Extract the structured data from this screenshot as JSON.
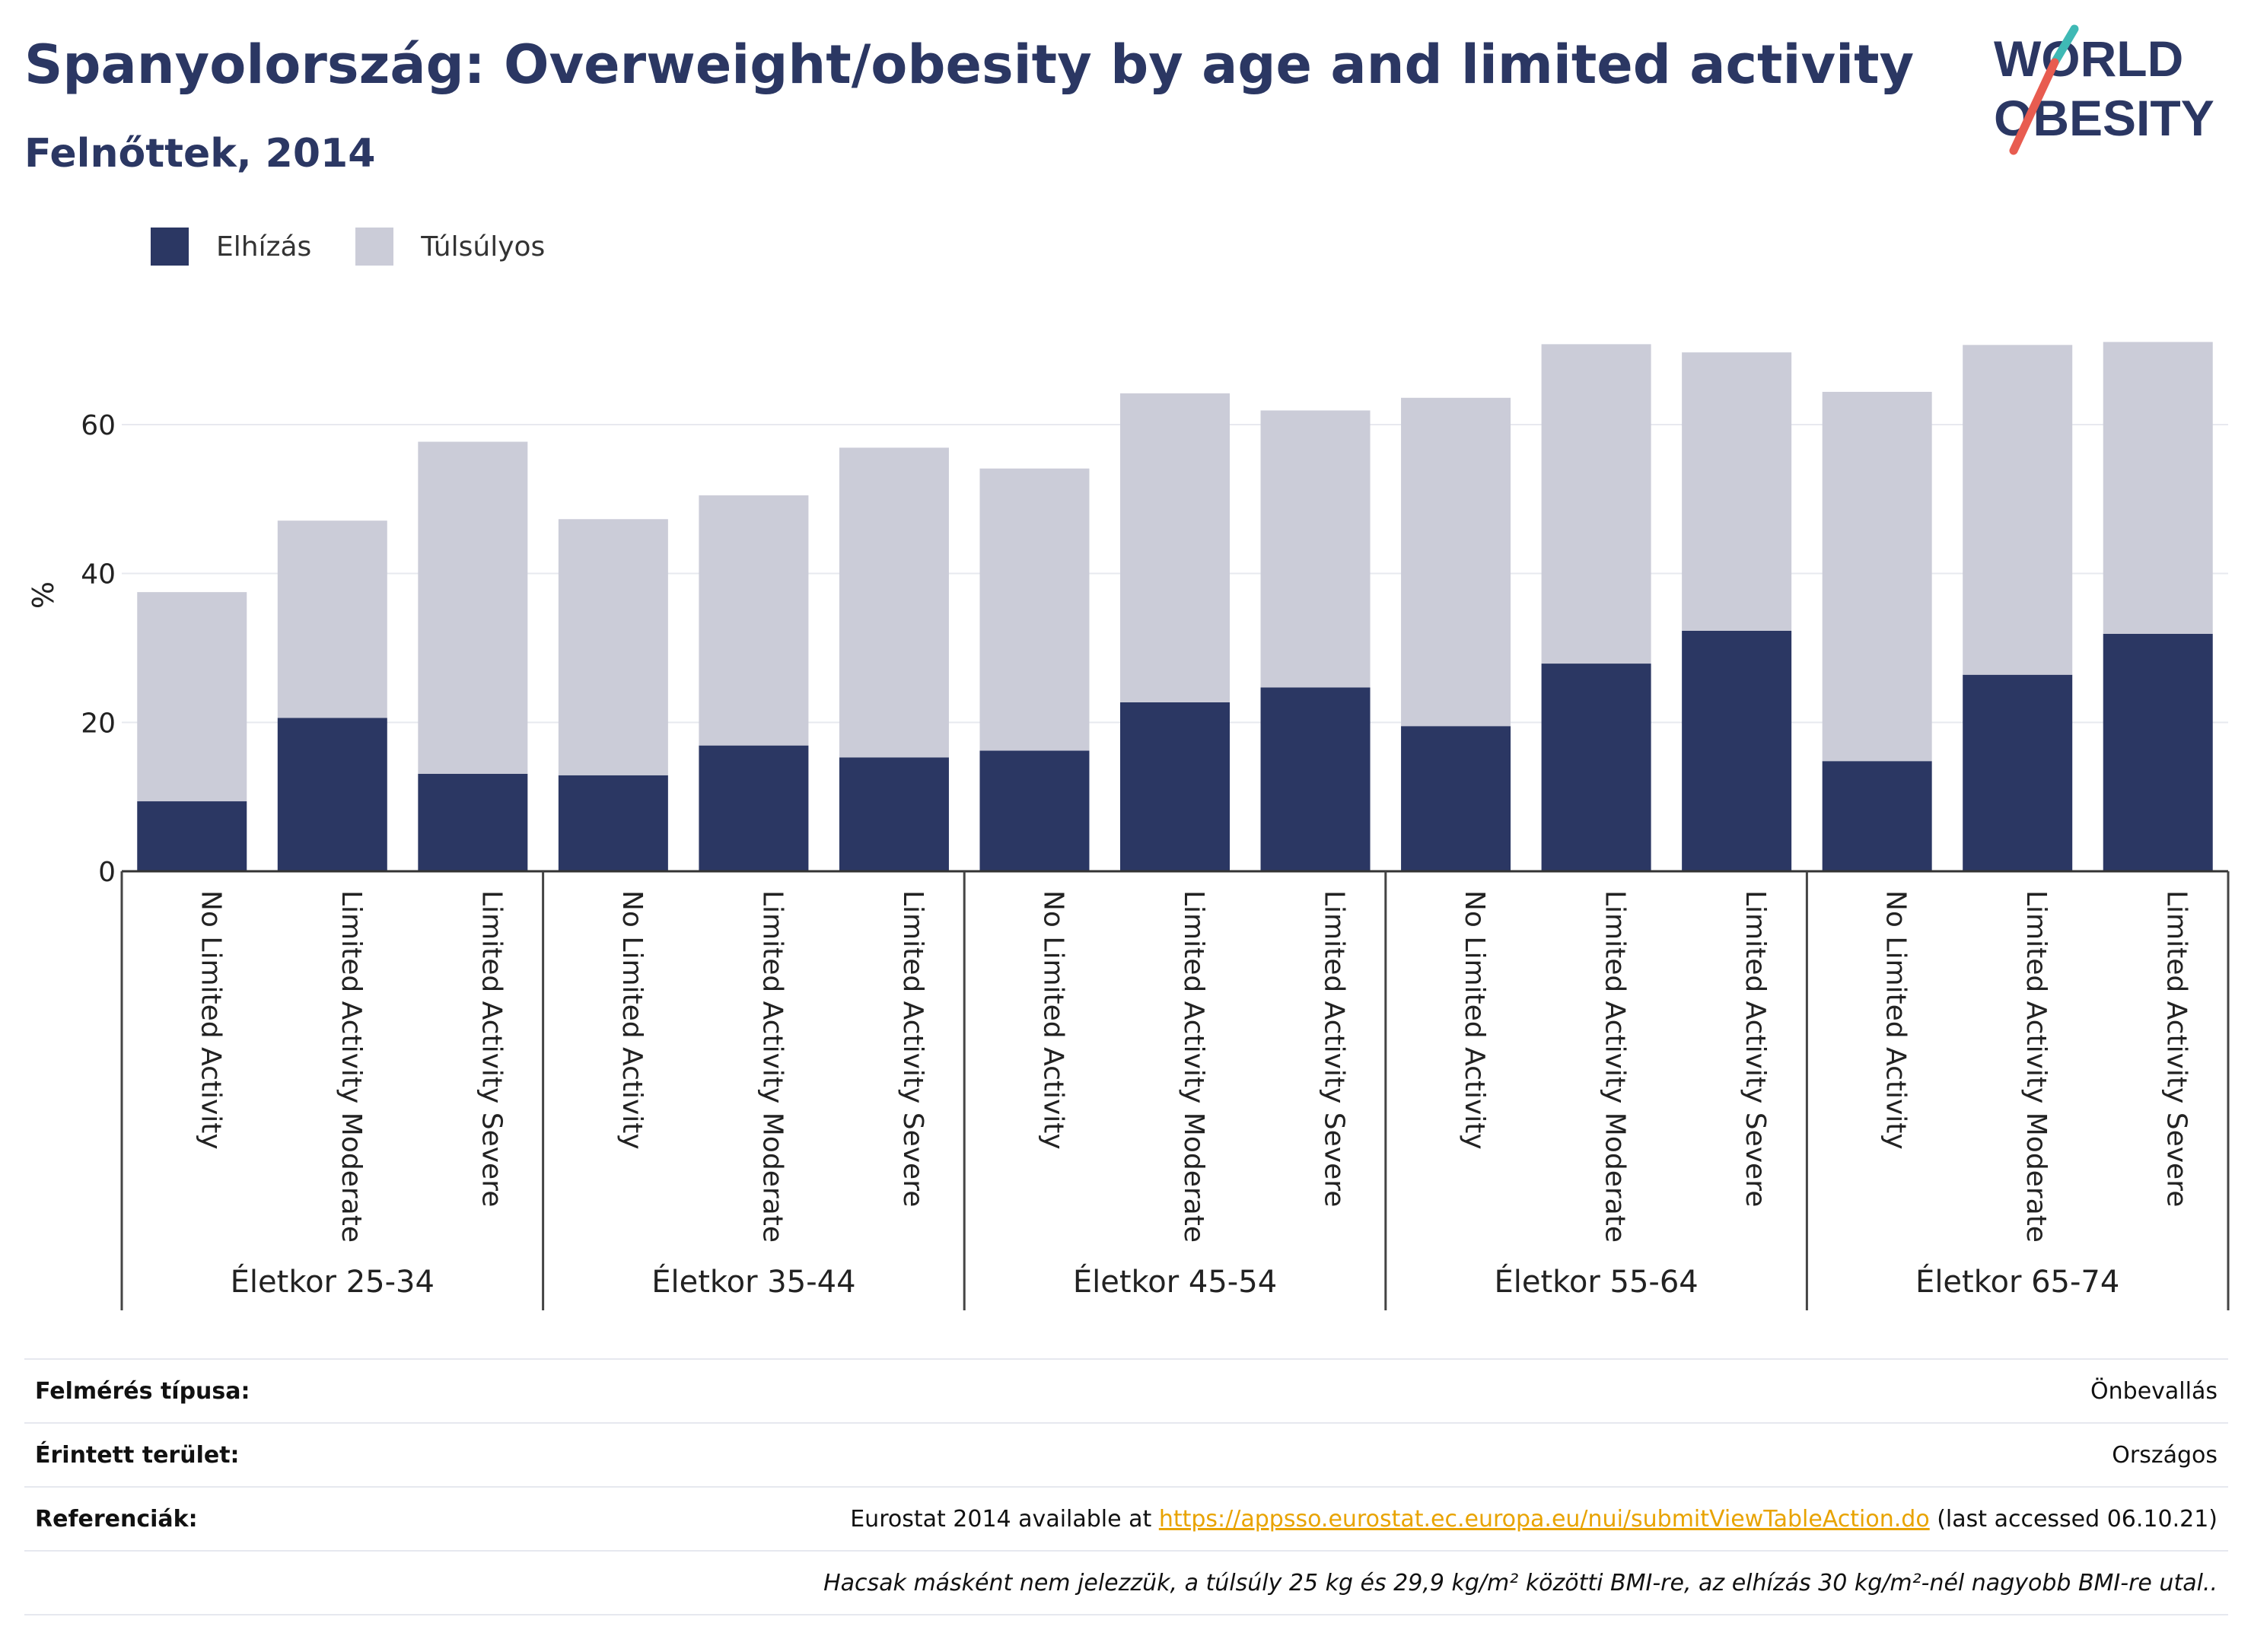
{
  "header": {
    "title": "Spanyolország: Overweight/obesity by age and limited activity",
    "subtitle": "Felnőttek, 2014"
  },
  "logo": {
    "line1": "WORLD",
    "line2": "OBESITY",
    "colors": {
      "text": "#2b3763",
      "slash_red": "#e85c50",
      "slash_teal": "#3fb9b5"
    }
  },
  "legend": [
    {
      "label": "Elhízás",
      "color": "#2b3763"
    },
    {
      "label": "Túlsúlyos",
      "color": "#cbccd8"
    }
  ],
  "chart_data": {
    "type": "bar",
    "stacked": true,
    "ylabel": "%",
    "ylim": [
      0,
      72
    ],
    "yticks": [
      0,
      20,
      40,
      60
    ],
    "grid": true,
    "legend_position": "top-left",
    "groups": [
      "Életkor 25-34",
      "Életkor 35-44",
      "Életkor 45-54",
      "Életkor 55-64",
      "Életkor 65-74"
    ],
    "categories": [
      "No Limited Activity",
      "Limited Activity Moderate",
      "Limited Activity Severe",
      "No Limited Activity",
      "Limited Activity Moderate",
      "Limited Activity Severe",
      "No Limited Activity",
      "Limited Activity Moderate",
      "Limited Activity Severe",
      "No Limited Activity",
      "Limited Activity Moderate",
      "Limited Activity Severe",
      "No Limited Activity",
      "Limited Activity Moderate",
      "Limited Activity Severe"
    ],
    "series": [
      {
        "name": "Elhízás",
        "color": "#2b3763",
        "values": [
          9.4,
          20.6,
          13.1,
          12.9,
          16.9,
          15.3,
          16.2,
          22.7,
          24.7,
          19.5,
          27.9,
          32.3,
          14.8,
          26.4,
          31.9
        ]
      },
      {
        "name": "Túlsúlyos",
        "color": "#cbccd8",
        "values": [
          28.1,
          26.5,
          44.6,
          34.4,
          33.6,
          41.6,
          37.9,
          41.5,
          37.2,
          44.1,
          42.9,
          37.4,
          49.6,
          44.3,
          39.2
        ]
      }
    ]
  },
  "info": {
    "survey_label": "Felmérés típusa:",
    "survey_value": "Önbevallás",
    "area_label": "Érintett terület:",
    "area_value": "Országos",
    "ref_label": "Referenciák:",
    "ref_prefix": "Eurostat 2014 available at ",
    "ref_link": "https://appsso.eurostat.ec.europa.eu/nui/submitViewTableAction.do",
    "ref_suffix": " (last accessed 06.10.21)",
    "note": "Hacsak másként nem jelezzük, a túlsúly 25 kg és 29,9 kg/m² közötti BMI-re, az elhízás 30 kg/m²-nél nagyobb BMI-re utal.."
  }
}
